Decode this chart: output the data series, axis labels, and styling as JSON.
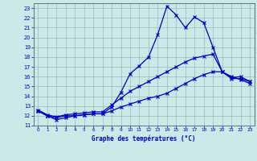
{
  "xlabel": "Graphe des températures (°C)",
  "bg_color": "#cce8e8",
  "line_color": "#0000bb",
  "grid_color": "#99bbbb",
  "xlim": [
    -0.5,
    23.5
  ],
  "ylim": [
    11,
    23.5
  ],
  "xticks": [
    0,
    1,
    2,
    3,
    4,
    5,
    6,
    7,
    8,
    9,
    10,
    11,
    12,
    13,
    14,
    15,
    16,
    17,
    18,
    19,
    20,
    21,
    22,
    23
  ],
  "yticks": [
    11,
    12,
    13,
    14,
    15,
    16,
    17,
    18,
    19,
    20,
    21,
    22,
    23
  ],
  "series1_x": [
    0,
    1,
    2,
    3,
    4,
    5,
    6,
    7,
    8,
    9,
    10,
    11,
    12,
    13,
    14,
    15,
    16,
    17,
    18,
    19,
    20,
    21,
    22,
    23
  ],
  "series1_y": [
    12.5,
    12.0,
    11.6,
    11.8,
    12.0,
    12.1,
    12.2,
    12.2,
    12.9,
    14.4,
    16.3,
    17.1,
    18.0,
    20.3,
    23.2,
    22.3,
    21.0,
    22.1,
    21.5,
    19.0,
    16.5,
    15.9,
    16.0,
    15.5
  ],
  "series2_x": [
    0,
    1,
    2,
    3,
    4,
    5,
    6,
    7,
    8,
    9,
    10,
    11,
    12,
    13,
    14,
    15,
    16,
    17,
    18,
    19,
    20,
    21,
    22,
    23
  ],
  "series2_y": [
    12.5,
    12.0,
    11.8,
    12.0,
    12.0,
    12.1,
    12.2,
    12.2,
    12.5,
    12.9,
    13.2,
    13.5,
    13.8,
    14.0,
    14.3,
    14.8,
    15.3,
    15.8,
    16.2,
    16.5,
    16.5,
    16.0,
    15.7,
    15.3
  ],
  "series3_x": [
    0,
    1,
    2,
    3,
    4,
    5,
    6,
    7,
    8,
    9,
    10,
    11,
    12,
    13,
    14,
    15,
    16,
    17,
    18,
    19,
    20,
    21,
    22,
    23
  ],
  "series3_y": [
    12.6,
    12.1,
    11.9,
    12.1,
    12.2,
    12.3,
    12.4,
    12.4,
    13.1,
    13.8,
    14.5,
    15.0,
    15.5,
    16.0,
    16.5,
    17.0,
    17.5,
    17.9,
    18.1,
    18.3,
    16.5,
    15.8,
    15.8,
    15.5
  ]
}
